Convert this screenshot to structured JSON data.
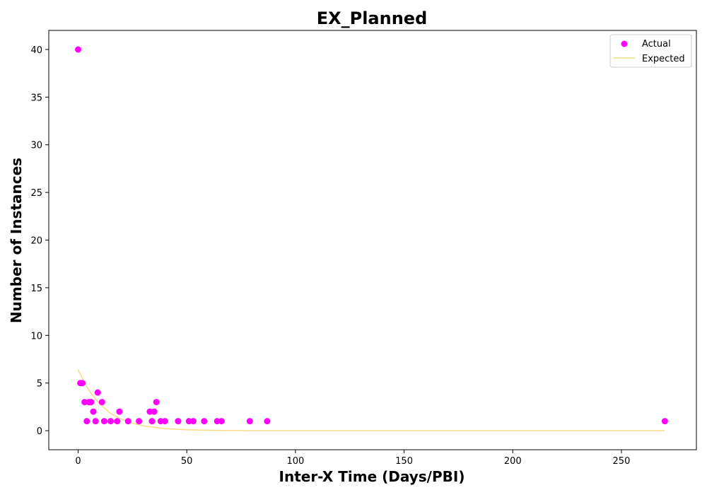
{
  "chart_data": {
    "type": "scatter",
    "title": "EX_Planned",
    "xlabel": "Inter-X Time (Days/PBI)",
    "ylabel": "Number of Instances",
    "xlim": [
      -13.5,
      284.5
    ],
    "ylim": [
      -2,
      42
    ],
    "xticks": [
      0,
      50,
      100,
      150,
      200,
      250
    ],
    "yticks": [
      0,
      5,
      10,
      15,
      20,
      25,
      30,
      35,
      40
    ],
    "grid": false,
    "legend_position": "top-right",
    "series": [
      {
        "name": "Actual",
        "kind": "scatter",
        "color": "#ff00ff",
        "points": [
          [
            0,
            40
          ],
          [
            1,
            5
          ],
          [
            2,
            5
          ],
          [
            3,
            3
          ],
          [
            4,
            1
          ],
          [
            5,
            3
          ],
          [
            6,
            3
          ],
          [
            7,
            2
          ],
          [
            8,
            1
          ],
          [
            9,
            4
          ],
          [
            11,
            3
          ],
          [
            12,
            1
          ],
          [
            15,
            1
          ],
          [
            18,
            1
          ],
          [
            19,
            2
          ],
          [
            23,
            1
          ],
          [
            28,
            1
          ],
          [
            33,
            2
          ],
          [
            34,
            1
          ],
          [
            35,
            2
          ],
          [
            36,
            3
          ],
          [
            38,
            1
          ],
          [
            40,
            1
          ],
          [
            46,
            1
          ],
          [
            51,
            1
          ],
          [
            53,
            1
          ],
          [
            58,
            1
          ],
          [
            64,
            1
          ],
          [
            66,
            1
          ],
          [
            79,
            1
          ],
          [
            87,
            1
          ],
          [
            270,
            1
          ]
        ]
      },
      {
        "name": "Expected",
        "kind": "line",
        "color": "#f5dc82",
        "points": [
          [
            0,
            6.4
          ],
          [
            3,
            5.0
          ],
          [
            6,
            3.9
          ],
          [
            10,
            2.8
          ],
          [
            15,
            1.8
          ],
          [
            20,
            1.2
          ],
          [
            25,
            0.8
          ],
          [
            30,
            0.5
          ],
          [
            40,
            0.22
          ],
          [
            50,
            0.09
          ],
          [
            60,
            0.04
          ],
          [
            80,
            0.006
          ],
          [
            100,
            0.001
          ],
          [
            150,
            0
          ],
          [
            200,
            0
          ],
          [
            250,
            0
          ],
          [
            270,
            0
          ]
        ]
      }
    ]
  }
}
